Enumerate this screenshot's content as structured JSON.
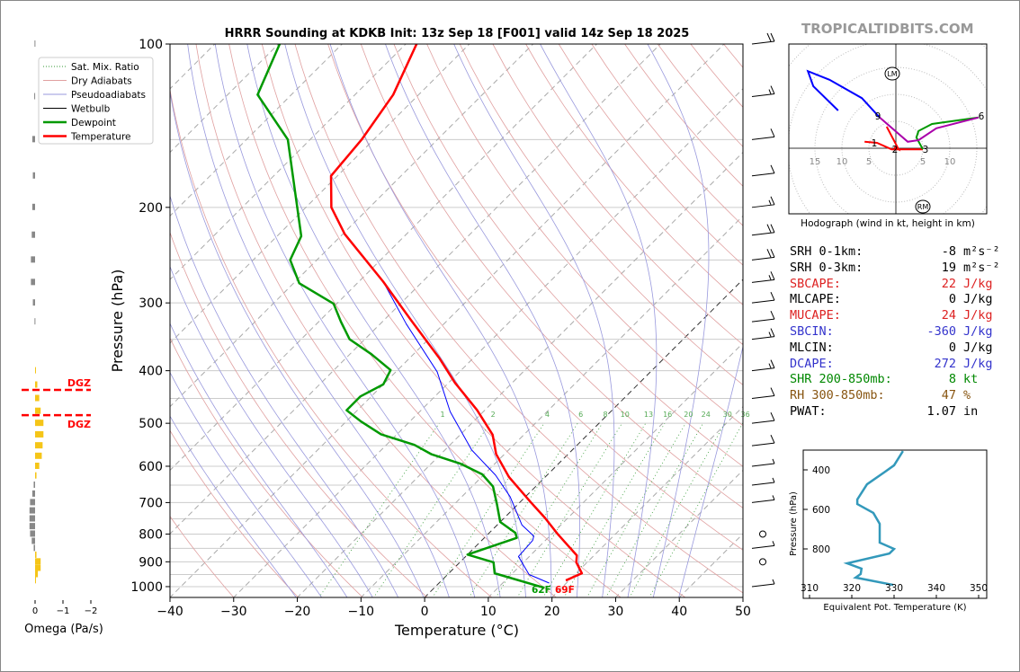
{
  "brand": "TROPICALTIDBITS.COM",
  "colors": {
    "temperature": "#ff0000",
    "dewpoint": "#009900",
    "wetbulb": "#0000ff",
    "thetae": "#3399bb",
    "dgz": "#ff0000",
    "omega_up": "#f5c518",
    "omega_down": "#888888"
  },
  "stats": [
    {
      "label": "SRH 0-1km:",
      "value": "-8",
      "unit": "m²s⁻²",
      "color": "#000000"
    },
    {
      "label": "SRH 0-3km:",
      "value": "19",
      "unit": "m²s⁻²",
      "color": "#000000"
    },
    {
      "label": "SBCAPE:",
      "value": "22",
      "unit": "J/kg",
      "color": "#dd2222"
    },
    {
      "label": "MLCAPE:",
      "value": "0",
      "unit": "J/kg",
      "color": "#000000"
    },
    {
      "label": "MUCAPE:",
      "value": "24",
      "unit": "J/kg",
      "color": "#dd2222"
    },
    {
      "label": "SBCIN:",
      "value": "-360",
      "unit": "J/kg",
      "color": "#3333cc"
    },
    {
      "label": "MLCIN:",
      "value": "0",
      "unit": "J/kg",
      "color": "#000000"
    },
    {
      "label": "DCAPE:",
      "value": "272",
      "unit": "J/kg",
      "color": "#3333cc"
    },
    {
      "label": "SHR 200-850mb:",
      "value": "8",
      "unit": "kt",
      "color": "#008800"
    },
    {
      "label": "RH 300-850mb:",
      "value": "47",
      "unit": "%",
      "color": "#885511"
    },
    {
      "label": "PWAT:",
      "value": "1.07",
      "unit": "in",
      "color": "#000000"
    }
  ],
  "chart_data": [
    {
      "type": "line",
      "name": "skewt",
      "title": "HRRR Sounding at KDKB Init: 13z Sep 18 [F001] valid 14z Sep 18 2025",
      "xlabel": "Temperature (°C)",
      "ylabel": "Pressure (hPa)",
      "xlim": [
        -40,
        50
      ],
      "ylim": [
        1050,
        100
      ],
      "xticks": [
        "−40",
        "−30",
        "−20",
        "−10",
        "0",
        "10",
        "20",
        "30",
        "40",
        "50"
      ],
      "yticks": [
        "100",
        "200",
        "300",
        "400",
        "500",
        "600",
        "700",
        "800",
        "900",
        "1000"
      ],
      "legend": {
        "position": "top-left",
        "entries": [
          "Sat. Mix. Ratio",
          "Dry Adiabats",
          "Pseudoadiabats",
          "Wetbulb",
          "Dewpoint",
          "Temperature"
        ]
      },
      "mixing_ratio_labels": [
        "1",
        "2",
        "4",
        "6",
        "8",
        "10",
        "13",
        "16",
        "20",
        "24",
        "30",
        "36"
      ],
      "surface_label_td": "62F",
      "surface_label_t": "69F",
      "temperature": [
        [
          974,
          19.5
        ],
        [
          945,
          20.9
        ],
        [
          902,
          18.3
        ],
        [
          876,
          17.3
        ],
        [
          837,
          14.1
        ],
        [
          802,
          11.1
        ],
        [
          746,
          6.3
        ],
        [
          700,
          1.8
        ],
        [
          628,
          -5.7
        ],
        [
          570,
          -11.3
        ],
        [
          525,
          -14.9
        ],
        [
          473,
          -21.2
        ],
        [
          421,
          -29
        ],
        [
          380,
          -35.2
        ],
        [
          322,
          -45.9
        ],
        [
          274,
          -56.2
        ],
        [
          224,
          -69.7
        ],
        [
          200,
          -76
        ],
        [
          175,
          -81
        ],
        [
          150,
          -81.9
        ],
        [
          124,
          -84
        ],
        [
          100,
          -88.3
        ]
      ],
      "dewpoint": [
        [
          1005,
          17.3
        ],
        [
          945,
          7.2
        ],
        [
          902,
          5.3
        ],
        [
          873,
          0
        ],
        [
          813,
          5.1
        ],
        [
          796,
          4.1
        ],
        [
          760,
          0
        ],
        [
          705,
          -3.3
        ],
        [
          654,
          -6.7
        ],
        [
          621,
          -10.3
        ],
        [
          594,
          -15.3
        ],
        [
          570,
          -21.5
        ],
        [
          548,
          -25.6
        ],
        [
          524,
          -32.5
        ],
        [
          496,
          -37.7
        ],
        [
          473,
          -41.7
        ],
        [
          446,
          -41.7
        ],
        [
          424,
          -40
        ],
        [
          399,
          -41.1
        ],
        [
          373,
          -46.6
        ],
        [
          350,
          -52.4
        ],
        [
          325,
          -56.5
        ],
        [
          301,
          -60.5
        ],
        [
          276,
          -69.1
        ],
        [
          250,
          -74.2
        ],
        [
          226,
          -76.2
        ],
        [
          150,
          -93.5
        ],
        [
          124,
          -105.3
        ],
        [
          100,
          -109.8
        ]
      ],
      "wetbulb": [
        [
          985,
          17.3
        ],
        [
          950,
          12.8
        ],
        [
          880,
          8.3
        ],
        [
          822,
          8
        ],
        [
          807,
          7.5
        ],
        [
          770,
          3.9
        ],
        [
          683,
          -2.4
        ],
        [
          623,
          -8.1
        ],
        [
          560,
          -15.8
        ],
        [
          476,
          -25.2
        ],
        [
          402,
          -33.5
        ],
        [
          328,
          -45.9
        ],
        [
          274,
          -56.2
        ],
        [
          224,
          -69.7
        ]
      ],
      "winds_kt": [
        [
          100,
          20
        ],
        [
          125,
          15
        ],
        [
          150,
          10
        ],
        [
          175,
          10
        ],
        [
          200,
          15
        ],
        [
          225,
          20
        ],
        [
          250,
          20
        ],
        [
          275,
          15
        ],
        [
          300,
          10
        ],
        [
          325,
          10
        ],
        [
          350,
          15
        ],
        [
          400,
          15
        ],
        [
          450,
          10
        ],
        [
          500,
          10
        ],
        [
          550,
          10
        ],
        [
          600,
          5
        ],
        [
          650,
          5
        ],
        [
          700,
          5
        ],
        [
          800,
          0
        ],
        [
          850,
          5
        ],
        [
          900,
          0
        ],
        [
          1000,
          5
        ]
      ]
    },
    {
      "type": "bar",
      "name": "omega",
      "xlabel": "Omega (Pa/s)",
      "xticks": [
        "0",
        "−1",
        "−2"
      ],
      "xlim": [
        0.5,
        -2
      ],
      "dgz_label": "DGZ",
      "dgz_hpa": [
        434,
        483
      ],
      "pressure": [
        100,
        125,
        150,
        175,
        200,
        225,
        250,
        275,
        300,
        325,
        400,
        425,
        450,
        475,
        500,
        525,
        550,
        575,
        600,
        625,
        650,
        675,
        700,
        725,
        750,
        775,
        800,
        825,
        850,
        875,
        900,
        925,
        950,
        975
      ],
      "values": [
        0.02,
        0.03,
        0.1,
        0.08,
        0.1,
        0.12,
        0.15,
        0.15,
        0.08,
        0.02,
        -0.02,
        -0.08,
        -0.15,
        -0.2,
        -0.3,
        -0.3,
        -0.27,
        -0.24,
        -0.15,
        -0.05,
        0.05,
        0.1,
        0.18,
        0.2,
        0.2,
        0.2,
        0.18,
        0.12,
        0.05,
        -0.05,
        -0.2,
        -0.2,
        -0.1,
        -0.02
      ]
    },
    {
      "type": "line",
      "name": "hodograph",
      "xlabel": "Hodograph (wind in kt, height in km)",
      "ring_labels": [
        "15",
        "10",
        "5",
        "5",
        "10"
      ],
      "markers": [
        "LM",
        "RM"
      ],
      "height_labels": [
        "1",
        "2",
        "3",
        "6",
        "9"
      ],
      "segments": [
        {
          "color": "#ff0000",
          "uv": [
            [
              -5.8,
              1.2
            ],
            [
              -3.5,
              1
            ],
            [
              -0.8,
              -0.2
            ],
            [
              0.5,
              -0.2
            ],
            [
              5,
              -0.2
            ]
          ]
        },
        {
          "color": "#ff0000",
          "uv": [
            [
              -0.3,
              0.2
            ],
            [
              0.5,
              -0.2
            ],
            [
              -1.7,
              4
            ]
          ]
        },
        {
          "color": "#009900",
          "uv": [
            [
              5,
              -0.2
            ],
            [
              3.8,
              2
            ],
            [
              4.2,
              3.2
            ],
            [
              6.7,
              4.5
            ],
            [
              15.3,
              5.7
            ]
          ]
        },
        {
          "color": "#aa00aa",
          "uv": [
            [
              15.3,
              5.7
            ],
            [
              7.5,
              3.7
            ],
            [
              4.2,
              1.5
            ],
            [
              2.2,
              1.2
            ],
            [
              -3,
              5.7
            ]
          ]
        },
        {
          "color": "#0000ff",
          "uv": [
            [
              -3,
              5.7
            ],
            [
              -6.3,
              9.3
            ],
            [
              -12.3,
              12.7
            ],
            [
              -16.3,
              14.3
            ],
            [
              -15.3,
              11.5
            ],
            [
              -10.7,
              7
            ]
          ]
        }
      ]
    },
    {
      "type": "line",
      "name": "thetae",
      "xlabel": "Equivalent Pot. Temperature (K)",
      "ylabel": "Pressure (hPa)",
      "xticks": [
        "310",
        "320",
        "330",
        "340",
        "350"
      ],
      "yticks": [
        "400",
        "600",
        "800"
      ],
      "points": [
        [
          305,
          332.1
        ],
        [
          377,
          330
        ],
        [
          409,
          327.9
        ],
        [
          473,
          323.6
        ],
        [
          550,
          321.3
        ],
        [
          573,
          321.3
        ],
        [
          618,
          325.1
        ],
        [
          673,
          326.6
        ],
        [
          768,
          326.6
        ],
        [
          800,
          330
        ],
        [
          823,
          328.9
        ],
        [
          873,
          318.9
        ],
        [
          900,
          322.3
        ],
        [
          927,
          322.1
        ],
        [
          945,
          320.9
        ],
        [
          982,
          329.8
        ]
      ]
    }
  ]
}
